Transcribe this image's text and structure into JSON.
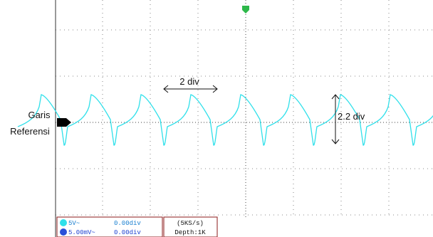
{
  "reference_label": {
    "line1": "Garis",
    "line2": "Referensi"
  },
  "annotations": {
    "horizontal": "2 div",
    "vertical": "2.2 div"
  },
  "status": {
    "ch1_scale": "5V~",
    "ch1_offset": "0.00div",
    "ch2_scale": "5.00mV~",
    "ch2_offset": "0.00div",
    "sample_rate": "(5KS/s)",
    "depth": "Depth:1K"
  }
}
